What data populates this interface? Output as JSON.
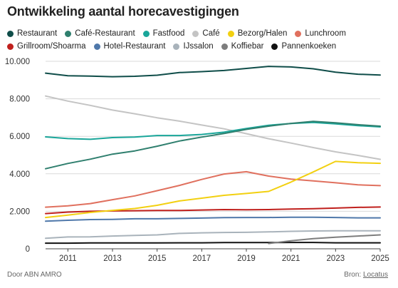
{
  "chart_data": {
    "type": "line",
    "title": "Ontwikkeling aantal horecavestigingen",
    "xlabel": "",
    "ylabel": "",
    "x": [
      2010,
      2011,
      2012,
      2013,
      2014,
      2015,
      2016,
      2017,
      2018,
      2019,
      2020,
      2021,
      2022,
      2023,
      2024,
      2025
    ],
    "xticks": [
      2011,
      2013,
      2015,
      2017,
      2019,
      2021,
      2023,
      2025
    ],
    "xlim": [
      2010,
      2025
    ],
    "ylim": [
      0,
      10000
    ],
    "yticks": [
      0,
      2000,
      4000,
      6000,
      8000,
      10000
    ],
    "ytick_labels": [
      "0",
      "2.000",
      "4.000",
      "6.000",
      "8.000",
      "10.000"
    ],
    "grid": "horizontal",
    "legend_position": "top",
    "series": [
      {
        "name": "Restaurant",
        "color": "#0f4d49",
        "values": [
          9370,
          9230,
          9210,
          9180,
          9200,
          9260,
          9400,
          9450,
          9510,
          9620,
          9730,
          9700,
          9600,
          9420,
          9310,
          9270
        ]
      },
      {
        "name": "Café-Restaurant",
        "color": "#2f7f6e",
        "values": [
          4270,
          4550,
          4780,
          5050,
          5220,
          5470,
          5750,
          5960,
          6150,
          6370,
          6540,
          6690,
          6800,
          6720,
          6620,
          6540
        ]
      },
      {
        "name": "Fastfood",
        "color": "#1aa69a",
        "values": [
          5970,
          5880,
          5840,
          5930,
          5960,
          6040,
          6040,
          6100,
          6220,
          6420,
          6590,
          6680,
          6740,
          6660,
          6570,
          6500
        ]
      },
      {
        "name": "Café",
        "color": "#c4c4c4",
        "values": [
          8150,
          7880,
          7650,
          7400,
          7200,
          6990,
          6810,
          6600,
          6400,
          6140,
          5870,
          5640,
          5400,
          5170,
          4980,
          4770
        ]
      },
      {
        "name": "Bezorg/Halen",
        "color": "#f2d011",
        "values": [
          1670,
          1800,
          1940,
          2050,
          2150,
          2320,
          2550,
          2700,
          2850,
          2950,
          3060,
          3560,
          4100,
          4660,
          4590,
          4560
        ]
      },
      {
        "name": "Lunchroom",
        "color": "#e0705e",
        "values": [
          2220,
          2290,
          2410,
          2620,
          2820,
          3100,
          3380,
          3700,
          3990,
          4110,
          3880,
          3720,
          3620,
          3520,
          3410,
          3370
        ]
      },
      {
        "name": "Grillroom/Shoarma",
        "color": "#c0201d",
        "values": [
          1880,
          1960,
          2000,
          2020,
          2030,
          2040,
          2040,
          2070,
          2090,
          2080,
          2090,
          2120,
          2140,
          2170,
          2210,
          2230
        ]
      },
      {
        "name": "Hotel-Restaurant",
        "color": "#4f78aa",
        "values": [
          1470,
          1520,
          1560,
          1570,
          1600,
          1600,
          1620,
          1640,
          1660,
          1670,
          1670,
          1680,
          1680,
          1670,
          1650,
          1650
        ]
      },
      {
        "name": "IJssalon",
        "color": "#a9b3bb",
        "values": [
          560,
          630,
          640,
          680,
          710,
          740,
          820,
          850,
          870,
          880,
          900,
          930,
          950,
          960,
          960,
          960
        ]
      },
      {
        "name": "Koffiebar",
        "color": "#7d7d7d",
        "values": [
          null,
          null,
          null,
          null,
          null,
          null,
          null,
          null,
          null,
          null,
          280,
          430,
          540,
          620,
          680,
          740
        ]
      },
      {
        "name": "Pannenkoeken",
        "color": "#111111",
        "values": [
          300,
          300,
          310,
          310,
          310,
          310,
          320,
          320,
          330,
          330,
          330,
          340,
          340,
          320,
          320,
          320
        ]
      }
    ]
  },
  "legend_rows": [
    [
      0,
      1,
      2,
      3,
      4,
      5
    ],
    [
      6,
      7,
      8,
      9,
      10
    ]
  ],
  "footer": {
    "left": "Door ABN AMRO",
    "source_prefix": "Bron: ",
    "source_link": "Locatus"
  }
}
